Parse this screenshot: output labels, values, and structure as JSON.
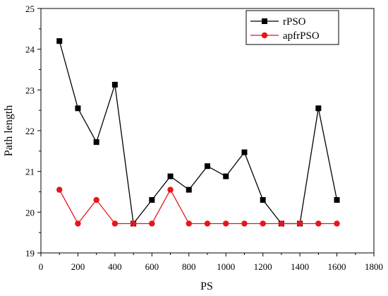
{
  "chart_data": {
    "type": "line",
    "xlabel": "PS",
    "ylabel": "Path length",
    "xlim": [
      0,
      1800
    ],
    "ylim": [
      19,
      25
    ],
    "xticks": [
      0,
      200,
      400,
      600,
      800,
      1000,
      1200,
      1400,
      1600,
      1800
    ],
    "yticks": [
      19,
      20,
      21,
      22,
      23,
      24,
      25
    ],
    "xtick_labels": [
      "0",
      "200",
      "400",
      "600",
      "800",
      "1000",
      "1200",
      "1400",
      "1600",
      "1800"
    ],
    "ytick_labels": [
      "19",
      "20",
      "21",
      "22",
      "23",
      "24",
      "25"
    ],
    "legend_position": "top-right",
    "grid": false,
    "x": [
      100,
      200,
      300,
      400,
      500,
      600,
      700,
      800,
      900,
      1000,
      1100,
      1200,
      1300,
      1400,
      1500,
      1600
    ],
    "series": [
      {
        "name": "rPSO",
        "color": "#000000",
        "marker": "square",
        "values": [
          24.2,
          22.55,
          21.72,
          23.13,
          19.72,
          20.3,
          20.88,
          20.55,
          21.13,
          20.88,
          21.47,
          20.3,
          19.72,
          19.72,
          22.55,
          20.3
        ]
      },
      {
        "name": "apfrPSO",
        "color": "#e8141b",
        "marker": "circle",
        "values": [
          20.55,
          19.72,
          20.3,
          19.72,
          19.72,
          19.72,
          20.55,
          19.72,
          19.72,
          19.72,
          19.72,
          19.72,
          19.72,
          19.72,
          19.72,
          19.72
        ]
      }
    ]
  }
}
